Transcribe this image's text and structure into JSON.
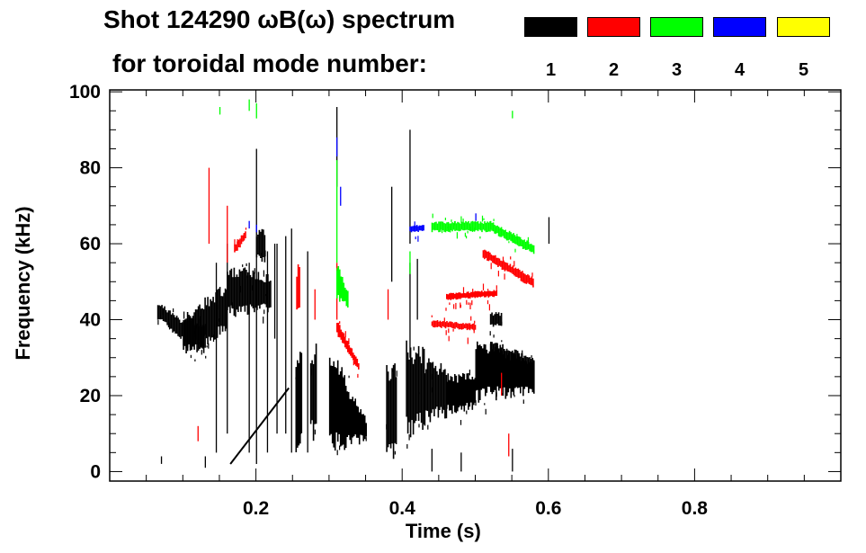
{
  "chart_data": {
    "type": "heatmap",
    "title_line1": "Shot 124290 ωB(ω) spectrum",
    "title_line2": "for toroidal mode number:",
    "xlabel": "Time (s)",
    "ylabel": "Frequency (kHz)",
    "xlim": [
      0,
      1.0
    ],
    "ylim": [
      -2.5,
      100.5
    ],
    "xticks": [
      {
        "v": 0.2,
        "label": "0.2"
      },
      {
        "v": 0.4,
        "label": "0.4"
      },
      {
        "v": 0.6,
        "label": "0.6"
      },
      {
        "v": 0.8,
        "label": "0.8"
      }
    ],
    "yticks": [
      {
        "v": 0,
        "label": "0"
      },
      {
        "v": 20,
        "label": "20"
      },
      {
        "v": 40,
        "label": "40"
      },
      {
        "v": 60,
        "label": "60"
      },
      {
        "v": 80,
        "label": "80"
      },
      {
        "v": 100,
        "label": "100"
      }
    ],
    "legend": [
      {
        "mode": "1",
        "color": "#000000"
      },
      {
        "mode": "2",
        "color": "#ff0000"
      },
      {
        "mode": "3",
        "color": "#00ff00"
      },
      {
        "mode": "4",
        "color": "#0000ff"
      },
      {
        "mode": "5",
        "color": "#ffff00"
      }
    ],
    "series": [
      {
        "mode": "1",
        "color": "#000000",
        "bands": [
          [
            0.065,
            0.1,
            40,
            45,
            34,
            40
          ],
          [
            0.1,
            0.13,
            32,
            41,
            31,
            40
          ],
          [
            0.1,
            0.16,
            30,
            42,
            36,
            50
          ],
          [
            0.16,
            0.22,
            40,
            55,
            42,
            52
          ],
          [
            0.2,
            0.212,
            55,
            64,
            55,
            64
          ],
          [
            0.254,
            0.263,
            5,
            35,
            5,
            35
          ],
          [
            0.274,
            0.282,
            7,
            34,
            7,
            34
          ],
          [
            0.3,
            0.35,
            3,
            35,
            8,
            14
          ],
          [
            0.378,
            0.392,
            3,
            30,
            3,
            30
          ],
          [
            0.405,
            0.43,
            8,
            35,
            10,
            33
          ],
          [
            0.43,
            0.46,
            12,
            30,
            14,
            29
          ],
          [
            0.46,
            0.5,
            15,
            26,
            16,
            26
          ],
          [
            0.5,
            0.58,
            18,
            36,
            20,
            30
          ],
          [
            0.52,
            0.58,
            28,
            35,
            25,
            30
          ],
          [
            0.52,
            0.535,
            38,
            42,
            38,
            42
          ]
        ],
        "strokes": [
          [
            0.145,
            5,
            55
          ],
          [
            0.16,
            10,
            60
          ],
          [
            0.19,
            5,
            55
          ],
          [
            0.2,
            2,
            85
          ],
          [
            0.215,
            5,
            58
          ],
          [
            0.225,
            35,
            60
          ],
          [
            0.228,
            10,
            60
          ],
          [
            0.24,
            10,
            62
          ],
          [
            0.248,
            5,
            64
          ],
          [
            0.27,
            5,
            58
          ],
          [
            0.31,
            75,
            96
          ],
          [
            0.385,
            50,
            75
          ],
          [
            0.41,
            60,
            90
          ],
          [
            0.41,
            30,
            55
          ],
          [
            0.42,
            40,
            56
          ],
          [
            0.6,
            60,
            67
          ],
          [
            0.07,
            2,
            4
          ],
          [
            0.13,
            1,
            4
          ],
          [
            0.55,
            0,
            6
          ],
          [
            0.48,
            0,
            5
          ],
          [
            0.44,
            0,
            6
          ]
        ],
        "lines": [
          [
            0.165,
            2,
            0.245,
            22
          ]
        ]
      },
      {
        "mode": "2",
        "color": "#ff0000",
        "bands": [
          [
            0.17,
            0.185,
            57,
            60,
            61,
            64
          ],
          [
            0.31,
            0.34,
            36,
            40,
            26,
            29
          ],
          [
            0.44,
            0.5,
            38,
            40,
            37,
            39
          ],
          [
            0.46,
            0.53,
            45,
            47,
            46,
            48
          ],
          [
            0.51,
            0.58,
            56,
            59,
            48,
            51
          ],
          [
            0.255,
            0.26,
            40,
            55,
            40,
            55
          ]
        ],
        "strokes": [
          [
            0.135,
            60,
            80
          ],
          [
            0.16,
            55,
            70
          ],
          [
            0.28,
            40,
            48
          ],
          [
            0.31,
            40,
            55
          ],
          [
            0.38,
            40,
            48
          ],
          [
            0.12,
            8,
            12
          ],
          [
            0.535,
            20,
            26
          ],
          [
            0.545,
            4,
            10
          ]
        ],
        "lines": []
      },
      {
        "mode": "3",
        "color": "#00ff00",
        "bands": [
          [
            0.52,
            0.58,
            63,
            66,
            57,
            60
          ],
          [
            0.44,
            0.52,
            63,
            66,
            63,
            66
          ],
          [
            0.31,
            0.325,
            45,
            55,
            43,
            48
          ]
        ],
        "strokes": [
          [
            0.31,
            55,
            82
          ],
          [
            0.15,
            94,
            96
          ],
          [
            0.19,
            95,
            98
          ],
          [
            0.2,
            93,
            97
          ],
          [
            0.55,
            93,
            95
          ],
          [
            0.41,
            52,
            58
          ]
        ],
        "lines": []
      },
      {
        "mode": "4",
        "color": "#0000ff",
        "bands": [
          [
            0.41,
            0.43,
            63,
            65,
            63,
            65
          ]
        ],
        "strokes": [
          [
            0.31,
            83,
            88
          ],
          [
            0.19,
            64,
            66
          ],
          [
            0.2,
            63,
            65
          ],
          [
            0.315,
            70,
            75
          ],
          [
            0.5,
            66,
            68
          ]
        ],
        "lines": []
      },
      {
        "mode": "5",
        "color": "#ffff00",
        "bands": [],
        "strokes": [],
        "lines": []
      }
    ]
  }
}
